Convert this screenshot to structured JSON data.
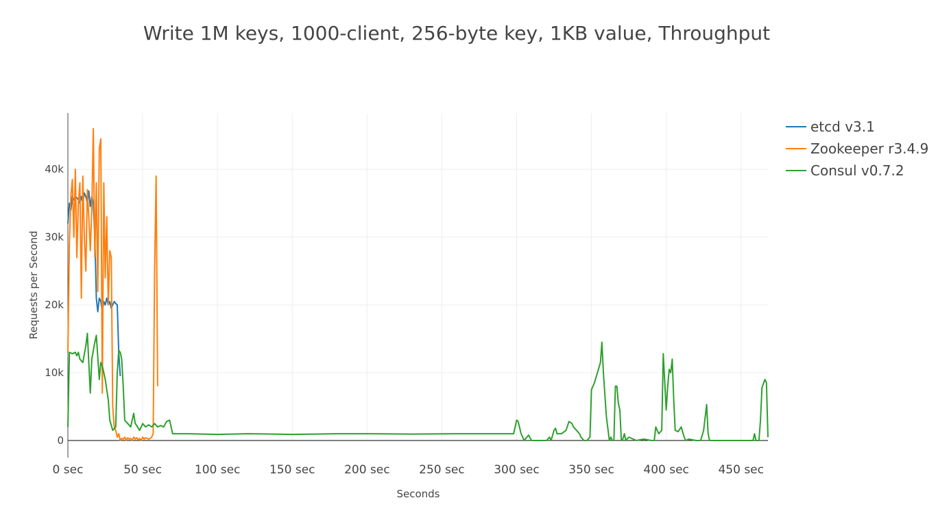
{
  "chart_data": {
    "type": "line",
    "title": "Write 1M keys, 1000-client, 256-byte key, 1KB value, Throughput",
    "xlabel": "Seconds",
    "ylabel": "Requests per Second",
    "xlim": [
      0,
      468
    ],
    "ylim": [
      0,
      48300
    ],
    "xticks": [
      {
        "value": 0,
        "label": "0 sec"
      },
      {
        "value": 50,
        "label": "50 sec"
      },
      {
        "value": 100,
        "label": "100 sec"
      },
      {
        "value": 150,
        "label": "150 sec"
      },
      {
        "value": 200,
        "label": "200 sec"
      },
      {
        "value": 250,
        "label": "250 sec"
      },
      {
        "value": 300,
        "label": "300 sec"
      },
      {
        "value": 350,
        "label": "350 sec"
      },
      {
        "value": 400,
        "label": "400 sec"
      },
      {
        "value": 450,
        "label": "450 sec"
      }
    ],
    "yticks": [
      0,
      {
        "value": 10000,
        "label": "10k"
      },
      {
        "value": 20000,
        "label": "20k"
      },
      {
        "value": 30000,
        "label": "30k"
      },
      {
        "value": 40000,
        "label": "40k"
      }
    ],
    "grid": true,
    "legend": "right",
    "series": [
      {
        "name": "etcd v3.1",
        "color": "#1f77b4",
        "x": [
          0,
          1,
          2,
          3,
          4,
          5,
          6,
          7,
          8,
          9,
          10,
          11,
          12,
          13,
          14,
          15,
          16,
          17,
          18,
          19,
          20,
          21,
          22,
          23,
          24,
          25,
          26,
          27,
          28,
          29,
          30,
          31,
          32,
          33,
          34,
          35
        ],
        "values": [
          32000,
          35000,
          34000,
          36000,
          35500,
          36000,
          35800,
          35500,
          35000,
          36000,
          35000,
          36500,
          36000,
          35000,
          36800,
          34500,
          36000,
          35000,
          30000,
          21000,
          19000,
          21000,
          20500,
          19000,
          20500,
          20000,
          21000,
          20000,
          20500,
          19500,
          20000,
          20500,
          20200,
          20000,
          13000,
          9500
        ]
      },
      {
        "name": "Zookeeper r3.4.9",
        "color": "#ff7f0e",
        "x": [
          0,
          1,
          2,
          3,
          4,
          5,
          6,
          7,
          8,
          9,
          10,
          11,
          12,
          13,
          14,
          15,
          16,
          17,
          18,
          19,
          20,
          21,
          22,
          23,
          24,
          25,
          26,
          27,
          28,
          29,
          30,
          31,
          32,
          33,
          34,
          35,
          36,
          37,
          38,
          39,
          40,
          41,
          42,
          43,
          44,
          45,
          46,
          47,
          48,
          49,
          50,
          51,
          52,
          53,
          54,
          55,
          56,
          57,
          58,
          59,
          60
        ],
        "values": [
          13000,
          29000,
          36000,
          38500,
          30000,
          40000,
          27000,
          35000,
          38000,
          21000,
          39000,
          30000,
          25000,
          37000,
          33000,
          28000,
          34000,
          46000,
          27000,
          38000,
          22000,
          43000,
          44500,
          7000,
          38000,
          24000,
          33000,
          20000,
          28000,
          27000,
          5000,
          2000,
          1500,
          500,
          1000,
          0,
          300,
          200,
          500,
          0,
          400,
          200,
          300,
          0,
          500,
          200,
          400,
          100,
          300,
          0,
          500,
          200,
          400,
          300,
          200,
          300,
          500,
          1000,
          25000,
          39000,
          8000
        ]
      },
      {
        "name": "Consul v0.7.2",
        "color": "#2ca02c",
        "x": [
          0,
          1,
          3,
          5,
          6,
          7,
          8,
          10,
          12,
          13,
          15,
          16,
          18,
          19,
          21,
          22,
          23,
          24,
          25,
          27,
          28,
          30,
          32,
          33,
          34,
          35,
          36,
          37,
          38,
          40,
          42,
          43,
          44,
          45,
          46,
          48,
          50,
          52,
          54,
          56,
          58,
          60,
          62,
          64,
          66,
          68,
          70,
          80,
          100,
          120,
          150,
          180,
          200,
          230,
          260,
          280,
          298,
          300,
          301,
          303,
          305,
          308,
          310,
          315,
          320,
          322,
          323,
          325,
          326,
          327,
          330,
          333,
          335,
          337,
          338,
          340,
          342,
          343,
          345,
          347,
          349,
          350,
          352,
          354,
          356,
          357,
          358,
          360,
          362,
          363,
          364,
          365,
          366,
          367,
          368,
          369,
          370,
          371,
          372,
          373,
          375,
          380,
          385,
          390,
          392,
          393,
          395,
          397,
          398,
          400,
          401,
          402,
          403,
          404,
          405,
          406,
          408,
          410,
          412,
          413,
          415,
          420,
          423,
          425,
          427,
          428,
          429,
          431,
          440,
          450,
          458,
          459,
          460,
          462,
          463,
          464,
          466,
          467,
          468
        ],
        "values": [
          2000,
          13000,
          12800,
          13000,
          12500,
          13000,
          12000,
          11500,
          14000,
          15800,
          7000,
          12000,
          14500,
          15500,
          9000,
          11500,
          11000,
          10000,
          9000,
          6000,
          3000,
          1500,
          2000,
          10000,
          13300,
          13000,
          12000,
          8000,
          3000,
          2500,
          2000,
          3000,
          4000,
          2500,
          2200,
          1500,
          2500,
          2000,
          2300,
          2000,
          2500,
          2000,
          2200,
          2000,
          2800,
          3000,
          1000,
          1000,
          900,
          1000,
          900,
          1000,
          1000,
          950,
          1000,
          1000,
          1000,
          3000,
          2800,
          1000,
          0,
          800,
          0,
          0,
          0,
          500,
          0,
          1500,
          1800,
          1000,
          1000,
          1500,
          2800,
          2500,
          2000,
          1500,
          1000,
          500,
          0,
          0,
          500,
          7500,
          8500,
          10000,
          11500,
          14500,
          10000,
          3500,
          0,
          500,
          0,
          0,
          8000,
          8000,
          5500,
          4500,
          0,
          200,
          1000,
          0,
          500,
          0,
          200,
          0,
          0,
          2000,
          1000,
          1500,
          12800,
          4500,
          8000,
          10500,
          10000,
          12000,
          6000,
          1500,
          1300,
          2000,
          500,
          0,
          200,
          0,
          0,
          1500,
          5300,
          1000,
          0,
          0,
          0,
          0,
          0,
          1000,
          0,
          0,
          3000,
          7800,
          9000,
          8500,
          500
        ]
      }
    ]
  }
}
